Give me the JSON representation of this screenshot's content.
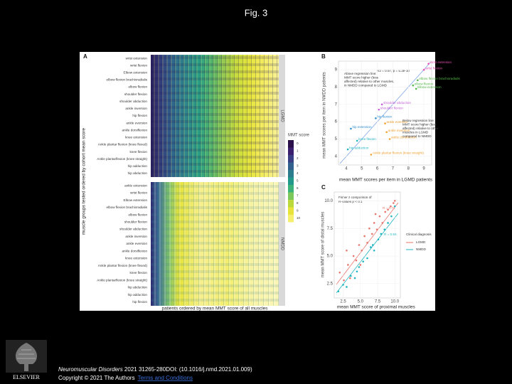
{
  "title": "Fig. 3",
  "panel_a": {
    "label": "A",
    "y_axis_title": "muscle groups tested ordered by cohort mean score",
    "x_axis_title": "patients ordered by mean MMT score of all muscles",
    "facets": [
      {
        "name": "LGMD",
        "rows": [
          "wrist extension",
          "wrist flexion",
          "Elbow extension",
          "elbow flexion brachioradialis",
          "elbow flexion",
          "shoulder flexion",
          "shoulder abduction",
          "ankle inversion",
          "hip flexion",
          "ankle eversion",
          "ankle dorsiflexion",
          "knee extension",
          "Ankle plantar flexion (knee flexed)",
          "knee flexion",
          "Ankle plantarflexion (knee straight)",
          "hip adduction",
          "hip abduction"
        ]
      },
      {
        "name": "NMDD",
        "rows": [
          "ankle extension",
          "wrist flexion",
          "Elbow extension",
          "elbow flexion brachioradialis",
          "elbow flexion",
          "shoulder flexion",
          "shoulder abduction",
          "ankle inversion",
          "ankle eversion",
          "ankle dorsiflexion",
          "knee extension",
          "Ankle plantar flexion (knee flexed)",
          "knee flexion",
          "Ankle plantarflexion (knee straight)",
          "hip abduction",
          "hip adduction",
          "hip flexion"
        ]
      }
    ],
    "legend": {
      "title": "MMT score",
      "levels": [
        0,
        1,
        2,
        3,
        4,
        5,
        6,
        7,
        8,
        9,
        10
      ],
      "colors": [
        "#2a0f4a",
        "#3b1f6e",
        "#3a3f85",
        "#33608d",
        "#2b7d8e",
        "#22998a",
        "#3db37a",
        "#7cc85a",
        "#bcd93c",
        "#e8e33a",
        "#f6ef6e"
      ]
    }
  },
  "panel_b": {
    "label": "B",
    "x_axis_title": "mean MMT scores per item in LGMD patients",
    "y_axis_title": "mean MMT scores per item in NMDD patients",
    "annotation": "R2 = 0.97, p = 5.3e-10",
    "note_above": [
      "Above regression line:",
      "MMT score higher (less",
      "affected) relative to other muscles,",
      "in NMDD compared to LGMD"
    ],
    "note_below": [
      "Below regression line:",
      "MMT score higher (less",
      "affected) relative to other",
      "muscles in LGMD",
      "compared to NMDD"
    ],
    "xlim": [
      3.5,
      9.5
    ],
    "ylim": [
      3.5,
      9.5
    ],
    "xticks": [
      4,
      5,
      6,
      7,
      8,
      9
    ],
    "yticks": [
      4,
      5,
      6,
      7,
      8,
      9
    ],
    "points": [
      {
        "name": "wrist extension",
        "x": 9.3,
        "y": 9.35,
        "color": "#e84fb0"
      },
      {
        "name": "wrist flexion",
        "x": 9.0,
        "y": 9.0,
        "color": "#e84fb0"
      },
      {
        "name": "elbow flexion brachioradialis",
        "x": 8.6,
        "y": 8.4,
        "color": "#54b848"
      },
      {
        "name": "elbow flexion",
        "x": 8.3,
        "y": 8.1,
        "color": "#54b848"
      },
      {
        "name": "Elbow extension",
        "x": 8.5,
        "y": 7.9,
        "color": "#54b848"
      },
      {
        "name": "shoulder abduction",
        "x": 6.3,
        "y": 7.0,
        "color": "#c25fd6"
      },
      {
        "name": "shoulder flexion",
        "x": 6.1,
        "y": 6.7,
        "color": "#c25fd6"
      },
      {
        "name": "hip flexion",
        "x": 5.9,
        "y": 6.2,
        "color": "#2e8fd1"
      },
      {
        "name": "ankle eversion",
        "x": 6.5,
        "y": 5.9,
        "color": "#f0a030"
      },
      {
        "name": "hip extension",
        "x": 4.3,
        "y": 5.6,
        "color": "#2e8fd1"
      },
      {
        "name": "ankle inversion",
        "x": 6.6,
        "y": 5.4,
        "color": "#f0a030"
      },
      {
        "name": "knee flexion",
        "x": 4.7,
        "y": 4.9,
        "color": "#1fb5c0"
      },
      {
        "name": "ankle dorsiflexion",
        "x": 6.8,
        "y": 5.0,
        "color": "#f0a030"
      },
      {
        "name": "hip adduction",
        "x": 4.1,
        "y": 4.4,
        "color": "#1fb5c0"
      },
      {
        "name": "Ankle plantar flexion (knee straight)",
        "x": 5.6,
        "y": 4.1,
        "color": "#f0a030"
      }
    ]
  },
  "panel_c": {
    "label": "C",
    "x_axis_title": "mean MMT score of proximal muscles",
    "y_axis_title": "mean MMT score of distal muscles",
    "annotation": [
      "Fisher z comparison of",
      "R-values p < 0.1"
    ],
    "r_labels": [
      "R = 0.72",
      "R = 0.56"
    ],
    "legend_title": "Clinical diagnosis",
    "xlim": [
      1.2,
      10.8
    ],
    "ylim": [
      1.2,
      10.8
    ],
    "xticks": [
      {
        "value": 2.5,
        "label": "2.5"
      },
      {
        "value": 5,
        "label": "5.0"
      },
      {
        "value": 7.5,
        "label": "7.5"
      },
      {
        "value": 10,
        "label": "10.0"
      }
    ],
    "yticks": [
      {
        "value": 2.5,
        "label": "2.5"
      },
      {
        "value": 5,
        "label": "5.0"
      },
      {
        "value": 7.5,
        "label": "7.5"
      },
      {
        "value": 10,
        "label": "10.0"
      }
    ],
    "series": [
      {
        "name": "LGMD",
        "color": "#e8766d",
        "x": [
          2.0,
          2.6,
          3.2,
          3.5,
          4.0,
          4.4,
          4.8,
          5.2,
          5.6,
          6.0,
          6.3,
          6.7,
          7.0,
          7.4,
          7.8,
          8.2,
          8.6,
          9.0,
          9.4,
          9.8,
          10.0,
          3.0,
          5.0,
          7.2
        ],
        "y": [
          3.5,
          2.8,
          4.2,
          3.0,
          5.0,
          4.6,
          6.0,
          5.5,
          6.8,
          6.2,
          7.5,
          7.0,
          8.0,
          7.4,
          8.6,
          8.0,
          9.0,
          9.2,
          9.5,
          9.8,
          10.0,
          5.5,
          4.2,
          8.8
        ]
      },
      {
        "name": "NMDD",
        "color": "#1fb5c0",
        "x": [
          1.8,
          2.5,
          3.0,
          3.6,
          4.2,
          4.8,
          5.4,
          6.0,
          6.5,
          7.0,
          7.6,
          8.0,
          8.5,
          9.0,
          9.5,
          10.0,
          4.5,
          6.8
        ],
        "y": [
          1.8,
          2.4,
          2.2,
          3.2,
          3.0,
          4.0,
          4.5,
          4.8,
          5.8,
          5.5,
          6.5,
          7.0,
          7.4,
          8.0,
          8.6,
          9.5,
          3.6,
          6.0
        ]
      }
    ]
  },
  "footer": {
    "journal": "Neuromuscular Disorders",
    "citation": " 2021 31265-280DOI: (10.1016/j.nmd.2021.01.009)",
    "copyright": "Copyright © 2021 The Authors",
    "link": "Terms and Conditions",
    "publisher": "ELSEVIER"
  }
}
